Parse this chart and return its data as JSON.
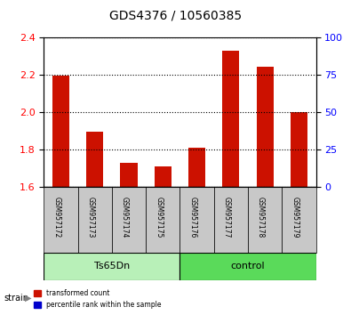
{
  "title": "GDS4376 / 10560385",
  "samples": [
    "GSM957172",
    "GSM957173",
    "GSM957174",
    "GSM957175",
    "GSM957176",
    "GSM957177",
    "GSM957178",
    "GSM957179"
  ],
  "red_values": [
    2.195,
    1.895,
    1.73,
    1.71,
    1.81,
    2.33,
    2.245,
    2.0
  ],
  "blue_values": [
    0.068,
    0.063,
    0.062,
    0.062,
    0.063,
    0.068,
    0.067,
    0.065
  ],
  "baseline": 1.6,
  "ylim_left": [
    1.6,
    2.4
  ],
  "ylim_right": [
    0,
    100
  ],
  "yticks_left": [
    1.6,
    1.8,
    2.0,
    2.2,
    2.4
  ],
  "yticks_right": [
    0,
    25,
    50,
    75,
    100
  ],
  "groups": [
    {
      "label": "Ts65Dn",
      "indices": [
        0,
        1,
        2,
        3
      ],
      "color": "#90EE90"
    },
    {
      "label": "control",
      "indices": [
        4,
        5,
        6,
        7
      ],
      "color": "#00CC00"
    }
  ],
  "group_label": "strain",
  "red_color": "#CC1100",
  "blue_color": "#0000CC",
  "bar_width": 0.5,
  "grid_color": "black",
  "tick_bg_color": "#C8C8C8",
  "legend_red": "transformed count",
  "legend_blue": "percentile rank within the sample"
}
